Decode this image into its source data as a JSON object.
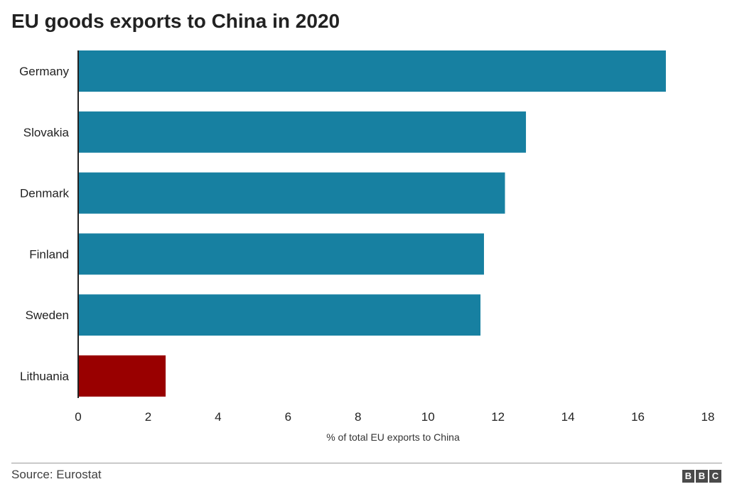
{
  "chart_data": {
    "type": "bar",
    "orientation": "horizontal",
    "title": "EU goods exports to China in 2020",
    "xlabel": "% of total EU exports to China",
    "ylabel": "",
    "categories": [
      "Germany",
      "Slovakia",
      "Denmark",
      "Finland",
      "Sweden",
      "Lithuania"
    ],
    "values": [
      16.8,
      12.8,
      12.2,
      11.6,
      11.5,
      2.5
    ],
    "xlim": [
      0,
      18
    ],
    "xticks": [
      0,
      2,
      4,
      6,
      8,
      10,
      12,
      14,
      16,
      18
    ],
    "grid": false,
    "colors": {
      "default": "#1780a1",
      "highlight": "#990000",
      "highlight_category": "Lithuania"
    }
  },
  "footer": {
    "source": "Source: Eurostat",
    "logo_letters": [
      "B",
      "B",
      "C"
    ]
  }
}
